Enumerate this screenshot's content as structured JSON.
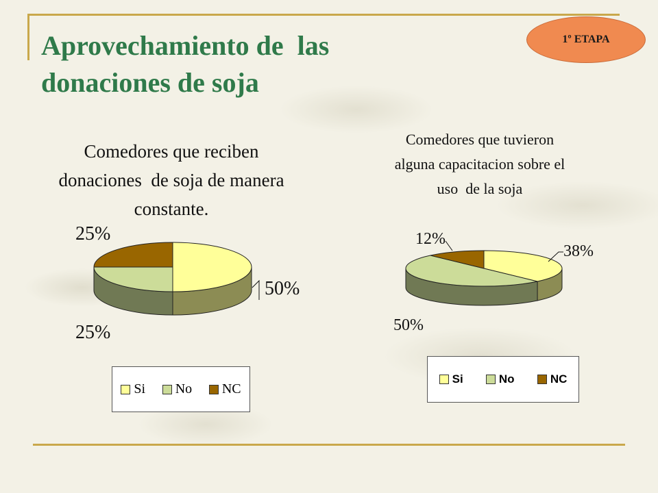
{
  "slide": {
    "title_line1": "Aprovechamiento de  las",
    "title_line2": "donaciones de soja",
    "stage_badge": "1º ETAPA"
  },
  "colors": {
    "Si": "#ffff99",
    "No": "#ccdc99",
    "NC": "#996600",
    "accent": "#2f7a4a",
    "rule": "#c9a84b"
  },
  "chart_data": [
    {
      "type": "pie",
      "title": "Comedores que reciben\ndonaciones  de soja de manera\nconstante.",
      "labels": [
        "Si",
        "No",
        "NC"
      ],
      "values": [
        50,
        25,
        25
      ],
      "value_labels": [
        "50%",
        "25%",
        "25%"
      ],
      "legend": "bottom"
    },
    {
      "type": "pie",
      "title": "Comedores que tuvieron\nalguna capacitacion sobre el\nuso  de la soja",
      "labels": [
        "Si",
        "No",
        "NC"
      ],
      "values": [
        38,
        50,
        12
      ],
      "value_labels": [
        "38%",
        "50%",
        "12%"
      ],
      "legend": "bottom"
    }
  ]
}
